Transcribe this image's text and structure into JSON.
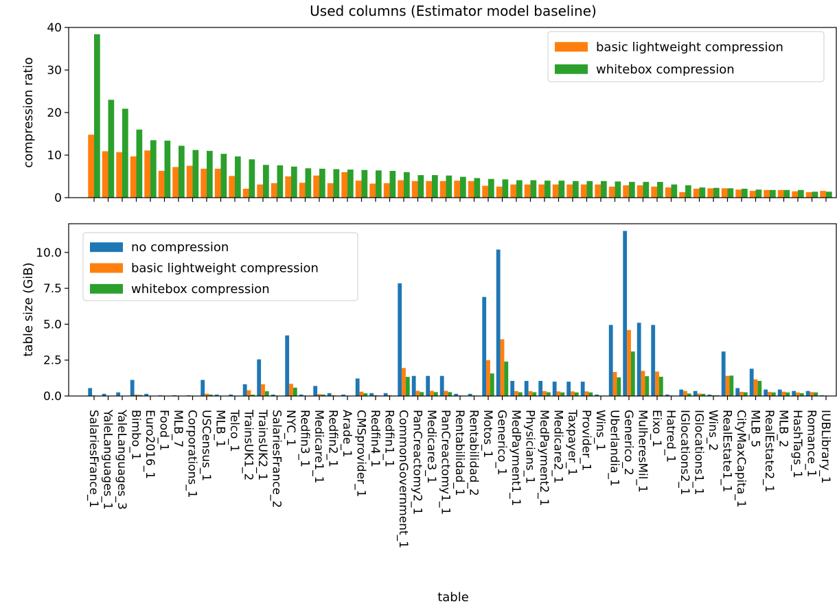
{
  "chart_data": {
    "type": "bar",
    "title": "Used columns (Estimator model baseline)",
    "xlabel": "table",
    "categories": [
      "SalariesFrance_1",
      "YaleLanguages_1",
      "YaleLanguages_3",
      "Bimbo_1",
      "Euro2016_1",
      "Food_1",
      "MLB_7",
      "Corporations_1",
      "USCensus_1",
      "MLB_1",
      "Telco_1",
      "TrainsUK1_2",
      "TrainsUK2_1",
      "SalariesFrance_2",
      "NYC_1",
      "Redfin3_1",
      "Medicare1_1",
      "Redfin2_1",
      "Arade_1",
      "CMSprovider_1",
      "Redfin4_1",
      "Redfin1_1",
      "CommonGovernment_1",
      "PanCreactomy2_1",
      "Medicare3_1",
      "PanCreactomy1_1",
      "Rentabilidad_1",
      "Rentabilidad_2",
      "Motos_1",
      "Generico_1",
      "MedPayment1_1",
      "Physicians_1",
      "MedPayment2_1",
      "Medicare2_1",
      "Taxpayer_1",
      "Provider_1",
      "Wins_1",
      "Uberlandia_1",
      "Generico_2",
      "MulheresMil_1",
      "Eixo_1",
      "Hatred_1",
      "IGlocations2_1",
      "IGlocations1_1",
      "Wins_2",
      "RealEstate1_1",
      "CityMaxCapita_1",
      "MLB_5",
      "RealEstate2_1",
      "MLB_2",
      "HashTags_1",
      "Romance_1",
      "IUBLibrary_1"
    ],
    "panels": [
      {
        "ylabel": "compression ratio",
        "ylim": [
          0,
          40
        ],
        "yticks": [
          "0",
          "10",
          "20",
          "30",
          "40"
        ],
        "legend_position": "top-right",
        "series": [
          {
            "name": "basic lightweight compression",
            "color": "#ff7f0e",
            "values": [
              14.8,
              10.9,
              10.7,
              9.7,
              11.1,
              6.3,
              7.2,
              7.5,
              6.8,
              6.8,
              5.1,
              2.1,
              3.1,
              3.4,
              5.0,
              3.5,
              5.2,
              3.4,
              6.0,
              4.0,
              3.3,
              3.4,
              4.1,
              3.9,
              3.9,
              3.9,
              4.0,
              3.9,
              2.8,
              2.6,
              3.1,
              3.1,
              3.1,
              3.1,
              3.1,
              3.1,
              3.1,
              2.6,
              2.9,
              2.9,
              2.6,
              2.4,
              1.3,
              2.1,
              2.2,
              2.2,
              1.9,
              1.6,
              1.8,
              1.8,
              1.5,
              1.3,
              1.6
            ]
          },
          {
            "name": "whitebox compression",
            "color": "#2ca02c",
            "values": [
              38.4,
              23.0,
              20.9,
              16.0,
              13.5,
              13.4,
              12.2,
              11.2,
              11.0,
              10.3,
              9.7,
              9.0,
              7.7,
              7.6,
              7.3,
              6.9,
              6.8,
              6.7,
              6.6,
              6.5,
              6.4,
              6.3,
              6.0,
              5.3,
              5.3,
              5.2,
              4.9,
              4.6,
              4.4,
              4.3,
              4.1,
              4.1,
              4.0,
              4.0,
              3.9,
              3.9,
              3.9,
              3.8,
              3.7,
              3.7,
              3.7,
              3.1,
              2.9,
              2.4,
              2.3,
              2.2,
              2.1,
              1.9,
              1.8,
              1.8,
              1.8,
              1.4,
              1.4
            ]
          }
        ]
      },
      {
        "ylabel": "table size (GiB)",
        "ylim": [
          0,
          12.0
        ],
        "yticks": [
          "0.0",
          "2.5",
          "5.0",
          "7.5",
          "10.0"
        ],
        "legend_position": "top-left",
        "series": [
          {
            "name": "no compression",
            "color": "#1f77b4",
            "values": [
              0.55,
              0.15,
              0.25,
              1.12,
              0.15,
              0.05,
              0.05,
              0.05,
              1.12,
              0.1,
              0.1,
              0.82,
              2.55,
              0.1,
              4.22,
              0.1,
              0.7,
              0.2,
              0.1,
              1.22,
              0.2,
              0.2,
              7.85,
              1.4,
              1.4,
              1.4,
              0.15,
              0.15,
              6.9,
              10.2,
              1.05,
              1.05,
              1.05,
              1.0,
              1.0,
              1.0,
              0.1,
              4.95,
              11.5,
              5.1,
              4.95,
              0.1,
              0.45,
              0.35,
              0.1,
              3.1,
              0.55,
              1.9,
              0.45,
              0.45,
              0.35,
              0.35,
              0.05
            ]
          },
          {
            "name": "basic lightweight compression",
            "color": "#ff7f0e",
            "values": [
              0.04,
              0.01,
              0.02,
              0.1,
              0.01,
              0.01,
              0.01,
              0.01,
              0.16,
              0.01,
              0.02,
              0.4,
              0.82,
              0.03,
              0.85,
              0.03,
              0.13,
              0.06,
              0.02,
              0.3,
              0.06,
              0.06,
              1.95,
              0.36,
              0.36,
              0.36,
              0.04,
              0.04,
              2.5,
              3.95,
              0.34,
              0.34,
              0.34,
              0.32,
              0.32,
              0.32,
              0.03,
              1.67,
              4.6,
              1.75,
              1.7,
              0.04,
              0.35,
              0.17,
              0.05,
              1.4,
              0.29,
              1.16,
              0.28,
              0.3,
              0.25,
              0.27,
              0.03
            ]
          },
          {
            "name": "whitebox compression",
            "color": "#2ca02c",
            "values": [
              0.01,
              0.005,
              0.01,
              0.07,
              0.01,
              0.005,
              0.005,
              0.005,
              0.1,
              0.01,
              0.01,
              0.09,
              0.33,
              0.01,
              0.58,
              0.01,
              0.1,
              0.03,
              0.015,
              0.19,
              0.03,
              0.03,
              1.33,
              0.27,
              0.27,
              0.27,
              0.03,
              0.03,
              1.57,
              2.4,
              0.26,
              0.26,
              0.26,
              0.25,
              0.25,
              0.25,
              0.03,
              1.3,
              3.1,
              1.38,
              1.34,
              0.03,
              0.17,
              0.15,
              0.05,
              1.42,
              0.26,
              1.05,
              0.25,
              0.25,
              0.2,
              0.25,
              0.02
            ]
          }
        ]
      }
    ]
  }
}
